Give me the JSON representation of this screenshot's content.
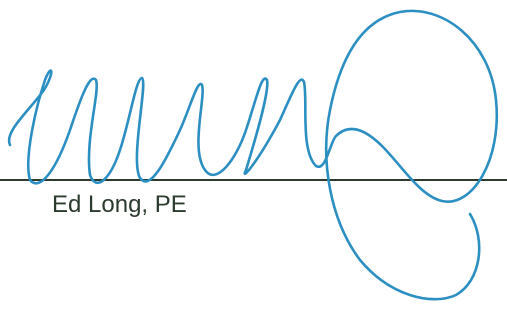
{
  "signature": {
    "name": "Ed Long, PE"
  }
}
